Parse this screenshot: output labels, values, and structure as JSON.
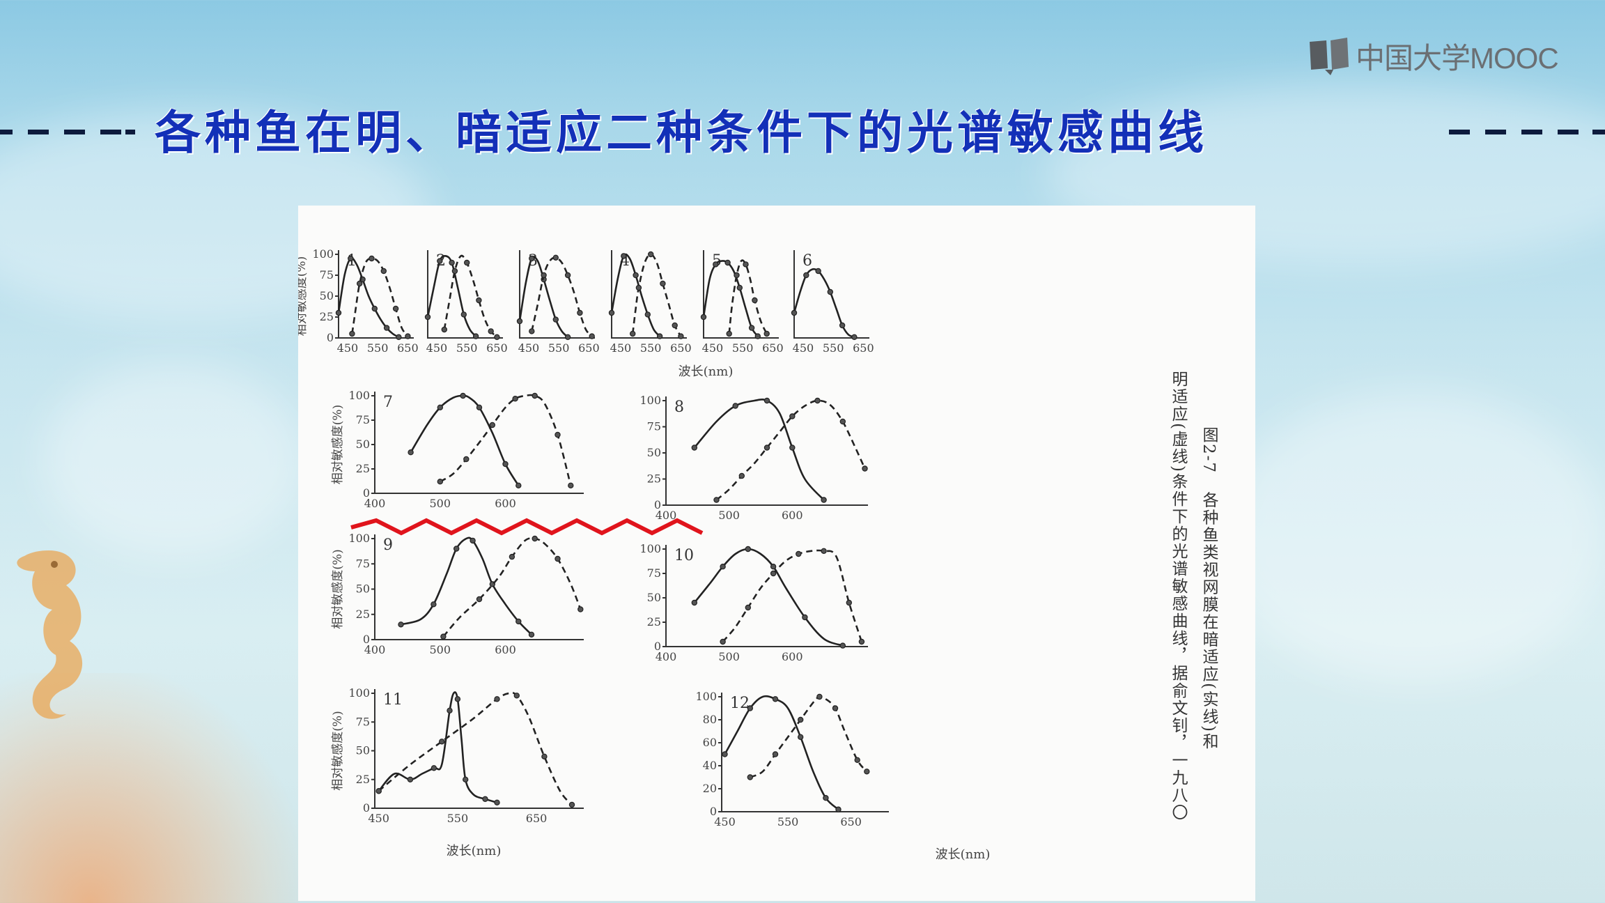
{
  "logo": {
    "text": "中国大学MOOC",
    "icon": "open-book-icon"
  },
  "title": {
    "text": "各种鱼在明、暗适应二种条件下的光谱敏感曲线",
    "dashes": "----"
  },
  "figure": {
    "caption_number": "图2-7",
    "caption_line1": "各种鱼类视网膜在暗适应(实线)和",
    "caption_line2": "明适应(虚线)条件下的光谱敏感曲线，据俞文钊，一九八〇",
    "ylabel": "相对敏感度(%)",
    "xlabel": "波长(nm)",
    "annotation_color": "#e0141c"
  },
  "chart_data": [
    {
      "type": "line",
      "label": "1",
      "xlim": [
        420,
        670
      ],
      "ylim": [
        0,
        100
      ],
      "xticks": [
        "450",
        "550",
        "650"
      ],
      "yticks": [
        "0",
        "25",
        "50",
        "75",
        "100"
      ],
      "ylabel": "相对敏感度(%)",
      "series": [
        {
          "style": "solid",
          "x": [
            420,
            440,
            460,
            480,
            500,
            520,
            540,
            560,
            580,
            600,
            620
          ],
          "y": [
            30,
            75,
            95,
            88,
            70,
            50,
            35,
            22,
            12,
            5,
            1
          ]
        },
        {
          "style": "dashed",
          "x": [
            465,
            475,
            490,
            510,
            530,
            550,
            570,
            590,
            610,
            630,
            650
          ],
          "y": [
            5,
            30,
            65,
            90,
            95,
            92,
            80,
            60,
            35,
            12,
            2
          ]
        }
      ]
    },
    {
      "type": "line",
      "label": "2",
      "xlim": [
        420,
        670
      ],
      "ylim": [
        0,
        100
      ],
      "xticks": [
        "450",
        "550",
        "650"
      ],
      "series": [
        {
          "style": "solid",
          "x": [
            420,
            440,
            460,
            480,
            500,
            520,
            540,
            560,
            580
          ],
          "y": [
            25,
            60,
            92,
            98,
            90,
            60,
            28,
            10,
            2
          ]
        },
        {
          "style": "dashed",
          "x": [
            475,
            490,
            510,
            530,
            550,
            570,
            590,
            610,
            630,
            650
          ],
          "y": [
            10,
            40,
            80,
            98,
            90,
            70,
            45,
            22,
            8,
            1
          ]
        }
      ]
    },
    {
      "type": "line",
      "label": "3",
      "xlim": [
        420,
        670
      ],
      "ylim": [
        0,
        100
      ],
      "xticks": [
        "450",
        "550",
        "650"
      ],
      "series": [
        {
          "style": "solid",
          "x": [
            420,
            440,
            460,
            480,
            500,
            520,
            540,
            560,
            580
          ],
          "y": [
            20,
            65,
            95,
            92,
            70,
            45,
            22,
            8,
            1
          ]
        },
        {
          "style": "dashed",
          "x": [
            460,
            480,
            500,
            520,
            540,
            560,
            580,
            600,
            620,
            640,
            660
          ],
          "y": [
            8,
            40,
            75,
            92,
            96,
            90,
            75,
            55,
            30,
            10,
            2
          ]
        }
      ]
    },
    {
      "type": "line",
      "label": "4",
      "xlim": [
        420,
        670
      ],
      "ylim": [
        0,
        100
      ],
      "xticks": [
        "450",
        "550",
        "650"
      ],
      "series": [
        {
          "style": "solid",
          "x": [
            420,
            440,
            460,
            480,
            500,
            520,
            540,
            560,
            580
          ],
          "y": [
            30,
            70,
            98,
            95,
            75,
            50,
            28,
            10,
            2
          ]
        },
        {
          "style": "dashed",
          "x": [
            490,
            500,
            510,
            530,
            550,
            570,
            590,
            610,
            630,
            650
          ],
          "y": [
            5,
            35,
            60,
            90,
            100,
            90,
            65,
            40,
            15,
            2
          ]
        }
      ]
    },
    {
      "type": "line",
      "label": "5",
      "xlim": [
        420,
        670
      ],
      "ylim": [
        0,
        100
      ],
      "xticks": [
        "450",
        "550",
        "650"
      ],
      "series": [
        {
          "style": "solid",
          "x": [
            420,
            440,
            460,
            480,
            500,
            520,
            540,
            560,
            580,
            600
          ],
          "y": [
            25,
            70,
            88,
            92,
            90,
            80,
            60,
            35,
            12,
            2
          ]
        },
        {
          "style": "dashed",
          "x": [
            505,
            515,
            530,
            545,
            560,
            575,
            590,
            610,
            630
          ],
          "y": [
            5,
            40,
            75,
            92,
            88,
            70,
            45,
            20,
            5
          ]
        }
      ]
    },
    {
      "type": "line",
      "label": "6",
      "xlim": [
        420,
        670
      ],
      "ylim": [
        0,
        100
      ],
      "xticks": [
        "450",
        "550",
        "650"
      ],
      "series": [
        {
          "style": "solid",
          "x": [
            420,
            440,
            460,
            480,
            500,
            520,
            540,
            560,
            580,
            600,
            620
          ],
          "y": [
            30,
            55,
            75,
            82,
            80,
            70,
            55,
            35,
            15,
            4,
            1
          ]
        }
      ]
    },
    {
      "type": "line",
      "label": "7",
      "xlim": [
        400,
        720
      ],
      "ylim": [
        0,
        100
      ],
      "xticks": [
        "400",
        "500",
        "600"
      ],
      "yticks": [
        "0",
        "25",
        "50",
        "75",
        "100"
      ],
      "ylabel": "相对敏感度(%)",
      "series": [
        {
          "style": "solid",
          "x": [
            455,
            480,
            500,
            520,
            535,
            545,
            560,
            580,
            600,
            620
          ],
          "y": [
            42,
            70,
            88,
            98,
            100,
            98,
            88,
            62,
            30,
            8
          ]
        },
        {
          "style": "dashed",
          "x": [
            500,
            520,
            540,
            560,
            580,
            600,
            615,
            630,
            645,
            660,
            680,
            700
          ],
          "y": [
            12,
            20,
            35,
            52,
            70,
            88,
            97,
            100,
            100,
            92,
            60,
            8
          ]
        }
      ]
    },
    {
      "type": "line",
      "label": "8",
      "xlim": [
        400,
        720
      ],
      "ylim": [
        0,
        100
      ],
      "xticks": [
        "400",
        "500",
        "600"
      ],
      "yticks": [
        "0",
        "25",
        "50",
        "75",
        "100"
      ],
      "series": [
        {
          "style": "solid",
          "x": [
            445,
            480,
            510,
            540,
            560,
            580,
            600,
            620,
            650
          ],
          "y": [
            55,
            80,
            95,
            100,
            100,
            88,
            55,
            25,
            5
          ]
        },
        {
          "style": "dashed",
          "x": [
            480,
            500,
            520,
            540,
            560,
            580,
            600,
            620,
            640,
            660,
            680,
            700,
            715
          ],
          "y": [
            5,
            15,
            28,
            40,
            55,
            70,
            85,
            95,
            100,
            96,
            80,
            55,
            35
          ]
        }
      ]
    },
    {
      "type": "line",
      "label": "9",
      "xlim": [
        400,
        720
      ],
      "ylim": [
        0,
        100
      ],
      "xticks": [
        "400",
        "500",
        "600"
      ],
      "yticks": [
        "0",
        "25",
        "50",
        "75",
        "100"
      ],
      "ylabel": "相对敏感度(%)",
      "series": [
        {
          "style": "solid",
          "x": [
            440,
            470,
            490,
            510,
            525,
            540,
            550,
            565,
            580,
            600,
            620,
            640
          ],
          "y": [
            15,
            20,
            35,
            65,
            90,
            100,
            98,
            80,
            55,
            35,
            18,
            5
          ]
        },
        {
          "style": "dashed",
          "x": [
            505,
            530,
            560,
            590,
            610,
            630,
            645,
            660,
            680,
            700,
            715
          ],
          "y": [
            3,
            22,
            40,
            62,
            82,
            98,
            100,
            95,
            80,
            55,
            30
          ]
        }
      ]
    },
    {
      "type": "line",
      "label": "10",
      "xlim": [
        400,
        720
      ],
      "ylim": [
        0,
        100
      ],
      "xticks": [
        "400",
        "500",
        "600"
      ],
      "yticks": [
        "0",
        "25",
        "50",
        "75",
        "100"
      ],
      "series": [
        {
          "style": "solid",
          "x": [
            445,
            470,
            490,
            510,
            530,
            550,
            570,
            590,
            620,
            650,
            680
          ],
          "y": [
            45,
            65,
            82,
            95,
            100,
            95,
            82,
            60,
            30,
            8,
            1
          ]
        },
        {
          "style": "dashed",
          "x": [
            490,
            510,
            530,
            550,
            570,
            590,
            610,
            630,
            650,
            670,
            690,
            710
          ],
          "y": [
            5,
            20,
            40,
            60,
            75,
            88,
            95,
            98,
            98,
            92,
            45,
            5
          ]
        }
      ]
    },
    {
      "type": "line",
      "label": "11",
      "xlim": [
        445,
        710
      ],
      "ylim": [
        0,
        100
      ],
      "xticks": [
        "450",
        "550",
        "650"
      ],
      "yticks": [
        "0",
        "25",
        "50",
        "75",
        "100"
      ],
      "ylabel": "相对敏感度(%)",
      "series": [
        {
          "style": "solid",
          "x": [
            450,
            470,
            490,
            505,
            520,
            530,
            540,
            545,
            550,
            555,
            560,
            570,
            585,
            600
          ],
          "y": [
            15,
            30,
            25,
            30,
            35,
            38,
            85,
            100,
            95,
            60,
            25,
            12,
            8,
            5
          ]
        },
        {
          "style": "dashed",
          "x": [
            450,
            490,
            530,
            570,
            600,
            615,
            625,
            640,
            660,
            680,
            695
          ],
          "y": [
            15,
            38,
            58,
            78,
            95,
            100,
            98,
            80,
            45,
            15,
            3
          ]
        }
      ]
    },
    {
      "type": "line",
      "label": "12",
      "xlim": [
        445,
        710
      ],
      "ylim": [
        0,
        100
      ],
      "xticks": [
        "450",
        "550",
        "650"
      ],
      "yticks": [
        "0",
        "20",
        "40",
        "60",
        "80",
        "100"
      ],
      "series": [
        {
          "style": "solid",
          "x": [
            450,
            470,
            490,
            510,
            530,
            550,
            570,
            590,
            610,
            630
          ],
          "y": [
            50,
            70,
            90,
            100,
            98,
            90,
            65,
            35,
            12,
            2
          ]
        },
        {
          "style": "dashed",
          "x": [
            490,
            510,
            530,
            550,
            570,
            590,
            600,
            610,
            625,
            640,
            660,
            675
          ],
          "y": [
            30,
            35,
            50,
            65,
            80,
            95,
            100,
            98,
            90,
            70,
            45,
            35
          ]
        }
      ]
    }
  ]
}
